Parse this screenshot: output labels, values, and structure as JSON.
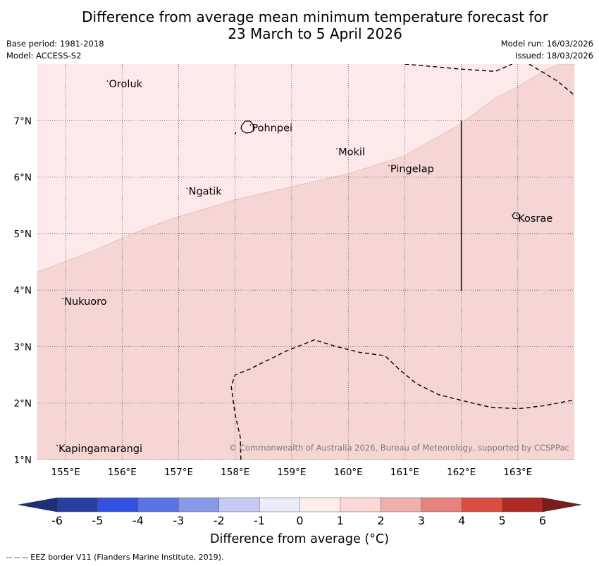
{
  "title": {
    "line1": "Difference from average mean minimum temperature forecast for",
    "line2": "23 March to 5 April 2026"
  },
  "meta": {
    "base_period": "Base period: 1981-2018",
    "model": "Model: ACCESS-S2",
    "model_run": "Model run: 16/03/2026",
    "issued": "Issued: 18/03/2026"
  },
  "map": {
    "lon_range": [
      154.5,
      164.0
    ],
    "lat_range": [
      1.0,
      8.0
    ],
    "lon_ticks": [
      {
        "value": 155,
        "label": "155°E"
      },
      {
        "value": 156,
        "label": "156°E"
      },
      {
        "value": 157,
        "label": "157°E"
      },
      {
        "value": 158,
        "label": "158°E"
      },
      {
        "value": 159,
        "label": "159°E"
      },
      {
        "value": 160,
        "label": "160°E"
      },
      {
        "value": 161,
        "label": "161°E"
      },
      {
        "value": 162,
        "label": "162°E"
      },
      {
        "value": 163,
        "label": "163°E"
      }
    ],
    "lat_ticks": [
      {
        "value": 1,
        "label": "1°N"
      },
      {
        "value": 2,
        "label": "2°N"
      },
      {
        "value": 3,
        "label": "3°N"
      },
      {
        "value": 4,
        "label": "4°N"
      },
      {
        "value": 5,
        "label": "5°N"
      },
      {
        "value": 6,
        "label": "6°N"
      },
      {
        "value": 7,
        "label": "7°N"
      }
    ],
    "zones": [
      {
        "name": "difference 0 to 1",
        "color": "#fbeae9"
      },
      {
        "name": "difference 1 to 2",
        "color": "#f5d6d5"
      }
    ],
    "zone_boundary": [
      [
        154.5,
        4.32
      ],
      [
        155.5,
        4.7
      ],
      [
        156.0,
        4.92
      ],
      [
        156.5,
        5.12
      ],
      [
        157.0,
        5.3
      ],
      [
        158.0,
        5.6
      ],
      [
        159.0,
        5.83
      ],
      [
        160.0,
        6.06
      ],
      [
        161.0,
        6.38
      ],
      [
        162.0,
        6.95
      ],
      [
        162.6,
        7.4
      ],
      [
        163.0,
        7.6
      ],
      [
        163.5,
        7.9
      ],
      [
        163.75,
        8.0
      ]
    ],
    "eez_borders": [
      [
        [
          161.0,
          8.0
        ],
        [
          162.0,
          7.91
        ],
        [
          162.6,
          7.87
        ],
        [
          162.9,
          8.0
        ]
      ],
      [
        [
          163.2,
          8.0
        ],
        [
          163.7,
          7.7
        ],
        [
          164.0,
          7.45
        ]
      ],
      [
        [
          162.0,
          7.0
        ],
        [
          162.0,
          3.99
        ]
      ],
      [
        [
          158.1,
          1.0
        ],
        [
          158.09,
          1.4
        ],
        [
          158.0,
          1.8
        ],
        [
          157.93,
          2.3
        ],
        [
          158.0,
          2.5
        ],
        [
          158.25,
          2.6
        ],
        [
          158.9,
          2.92
        ],
        [
          159.4,
          3.12
        ],
        [
          159.8,
          3.0
        ],
        [
          160.2,
          2.9
        ],
        [
          160.65,
          2.84
        ],
        [
          160.9,
          2.6
        ],
        [
          161.2,
          2.35
        ],
        [
          161.6,
          2.15
        ],
        [
          162.0,
          2.05
        ],
        [
          162.5,
          1.93
        ],
        [
          163.0,
          1.9
        ],
        [
          163.5,
          1.96
        ],
        [
          164.0,
          2.06
        ]
      ]
    ],
    "places": [
      {
        "name": "Oroluk",
        "lon": 155.74,
        "lat": 7.7
      },
      {
        "name": "Pohnpei",
        "lon": 158.27,
        "lat": 6.92
      },
      {
        "name": "Mokil",
        "lon": 159.8,
        "lat": 6.5
      },
      {
        "name": "Pingelap",
        "lon": 160.72,
        "lat": 6.2
      },
      {
        "name": "Ngatik",
        "lon": 157.15,
        "lat": 5.8
      },
      {
        "name": "Kosrae",
        "lon": 162.98,
        "lat": 5.32
      },
      {
        "name": "Nukuoro",
        "lon": 154.95,
        "lat": 3.85
      },
      {
        "name": "Kapingamarangi",
        "lon": 154.85,
        "lat": 1.25
      }
    ],
    "copyright": "© Commonwealth of Australia 2026, Bureau of Meteorology, supported by CCSPPac"
  },
  "colorbar": {
    "ticks": [
      "-6",
      "-5",
      "-4",
      "-3",
      "-2",
      "-1",
      "0",
      "1",
      "2",
      "3",
      "4",
      "5",
      "6"
    ],
    "colors": [
      "#283f9f",
      "#3450e0",
      "#5a74e4",
      "#8999ea",
      "#c5cbf4",
      "#ebecfa",
      "#fdeeec",
      "#fad9d7",
      "#eeb0ac",
      "#e6827d",
      "#da4d42",
      "#ad2a25"
    ],
    "extend_low_color": "#1f2e78",
    "extend_high_color": "#7a1c1c",
    "label": "Difference from average (°C)"
  },
  "footnote": "--  --  -- EEZ border V11 (Flanders Marine Institute, 2019)."
}
